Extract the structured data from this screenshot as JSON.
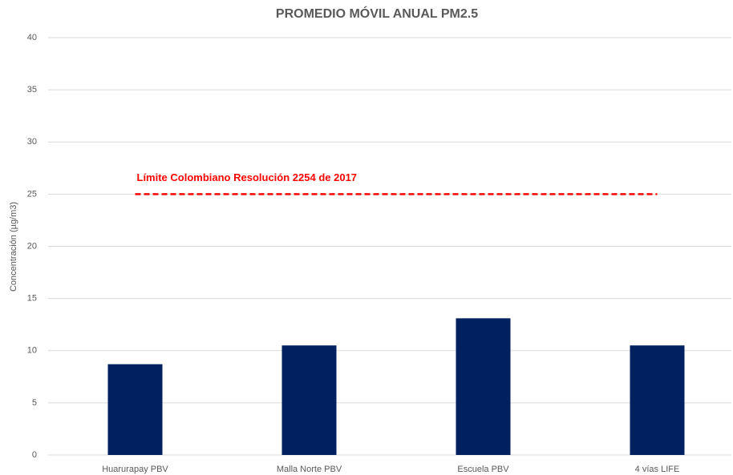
{
  "chart_data": {
    "type": "bar",
    "title": "PROMEDIO MÓVIL ANUAL PM2.5",
    "y_label": "Concentración (µg/m3)",
    "categories": [
      "Huarurapay PBV",
      "Malla Norte PBV",
      "Escuela PBV",
      "4 vías LIFE"
    ],
    "values": [
      8.7,
      10.5,
      13.1,
      10.5
    ],
    "color": "#002060",
    "ylim": [
      0,
      40
    ],
    "yticks": [
      0,
      5,
      10,
      15,
      20,
      25,
      30,
      35,
      40
    ],
    "grid": true,
    "reference_line": {
      "value": 25,
      "label": "Límite Colombiano Resolución 2254 de 2017",
      "color": "#ff0000"
    }
  }
}
